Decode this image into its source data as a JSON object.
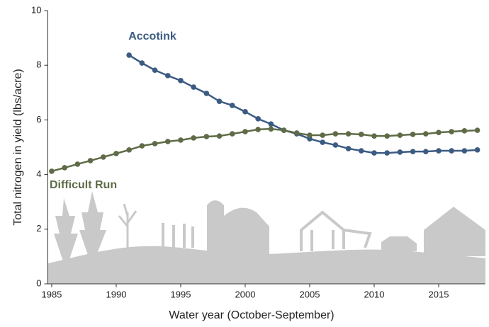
{
  "chart_data": {
    "type": "line",
    "x_label": "Water year (October-September)",
    "y_label": "Total nitrogen in yield (lbs/acre)",
    "x": [
      1985,
      1986,
      1987,
      1988,
      1989,
      1990,
      1991,
      1992,
      1993,
      1994,
      1995,
      1996,
      1997,
      1998,
      1999,
      2000,
      2001,
      2002,
      2003,
      2004,
      2005,
      2006,
      2007,
      2008,
      2009,
      2010,
      2011,
      2012,
      2013,
      2014,
      2015,
      2016,
      2017,
      2018
    ],
    "series": [
      {
        "name": "Accotink",
        "color": "#3b5b82",
        "values": [
          null,
          null,
          null,
          null,
          null,
          null,
          8.37,
          8.08,
          7.82,
          7.62,
          7.44,
          7.2,
          6.97,
          6.68,
          6.53,
          6.3,
          6.04,
          5.85,
          5.62,
          5.49,
          5.31,
          5.18,
          5.08,
          4.95,
          4.87,
          4.79,
          4.79,
          4.82,
          4.84,
          4.84,
          4.87,
          4.87,
          4.87,
          4.9
        ]
      },
      {
        "name": "Difficult Run",
        "color": "#5f6b47",
        "values": [
          4.12,
          4.25,
          4.38,
          4.51,
          4.64,
          4.77,
          4.9,
          5.05,
          5.13,
          5.21,
          5.26,
          5.34,
          5.39,
          5.41,
          5.49,
          5.57,
          5.65,
          5.67,
          5.62,
          5.52,
          5.44,
          5.44,
          5.49,
          5.49,
          5.47,
          5.41,
          5.41,
          5.44,
          5.47,
          5.49,
          5.54,
          5.57,
          5.6,
          5.62
        ]
      }
    ],
    "xlim": [
      1984.7,
      2018.6
    ],
    "xticks": [
      1985,
      1990,
      1995,
      2000,
      2005,
      2010,
      2015
    ],
    "ylim": [
      0,
      10
    ],
    "yticks": [
      0,
      2,
      4,
      6,
      8,
      10
    ]
  }
}
